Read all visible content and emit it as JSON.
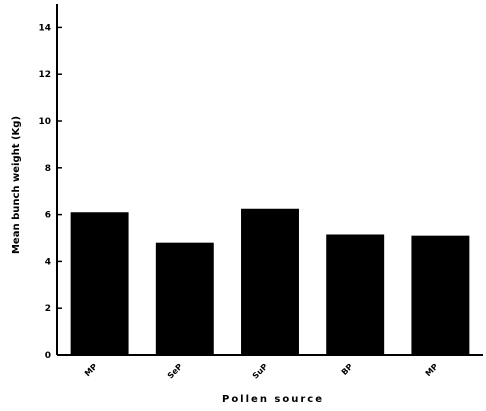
{
  "chart_data": {
    "type": "bar",
    "categories": [
      "MP",
      "SeP",
      "SuP",
      "BP",
      "MP"
    ],
    "values": [
      6.1,
      4.8,
      6.25,
      5.15,
      5.1
    ],
    "xlabel": "Pollen source",
    "ylabel": "Mean bunch weight (Kg)",
    "ylim": [
      0,
      15
    ],
    "yticks": [
      0,
      2,
      4,
      6,
      8,
      10,
      12,
      14
    ],
    "grid": false,
    "bar_color": "#000000"
  }
}
